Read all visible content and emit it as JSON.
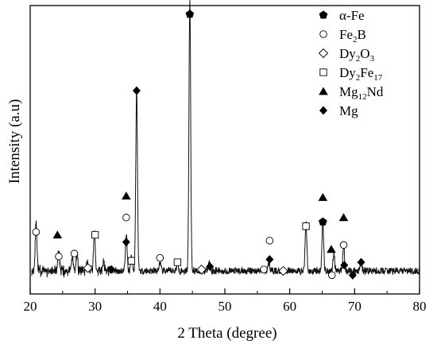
{
  "chart_data": {
    "type": "line",
    "xlabel": "2 Theta  (degree)",
    "ylabel": "Intensity (a.u)",
    "xlim": [
      20,
      80
    ],
    "ylim": [
      0,
      100
    ],
    "x_ticks": [
      "20",
      "30",
      "40",
      "50",
      "60",
      "70",
      "80"
    ],
    "y_ticks_labeled": false,
    "grid": false,
    "legend_position": "top-right",
    "legend": [
      {
        "marker": "pentagon-filled",
        "parts": [
          {
            "t": "α-Fe"
          }
        ]
      },
      {
        "marker": "circle-open",
        "parts": [
          {
            "t": "Fe"
          },
          {
            "t": "2",
            "sub": true
          },
          {
            "t": "B"
          }
        ]
      },
      {
        "marker": "diamond-open",
        "parts": [
          {
            "t": "Dy"
          },
          {
            "t": "2",
            "sub": true
          },
          {
            "t": "O"
          },
          {
            "t": "3",
            "sub": true
          }
        ]
      },
      {
        "marker": "square-open",
        "parts": [
          {
            "t": "Dy"
          },
          {
            "t": "2",
            "sub": true
          },
          {
            "t": "Fe"
          },
          {
            "t": "17",
            "sub": true
          }
        ]
      },
      {
        "marker": "triangle-filled",
        "parts": [
          {
            "t": "Mg"
          },
          {
            "t": "12",
            "sub": true
          },
          {
            "t": "Nd"
          }
        ]
      },
      {
        "marker": "diamond-filled",
        "parts": [
          {
            "t": "Mg"
          }
        ]
      }
    ],
    "baseline": 8,
    "noise_amplitude": 1.2,
    "peaks": [
      {
        "x": 20.9,
        "h": 17
      },
      {
        "x": 24.4,
        "h": 7
      },
      {
        "x": 26.5,
        "h": 5
      },
      {
        "x": 27.2,
        "h": 6
      },
      {
        "x": 28.8,
        "h": 3
      },
      {
        "x": 29.9,
        "h": 14
      },
      {
        "x": 31.3,
        "h": 3
      },
      {
        "x": 34.8,
        "h": 13
      },
      {
        "x": 35.6,
        "h": 5
      },
      {
        "x": 36.4,
        "h": 63
      },
      {
        "x": 40.0,
        "h": 3
      },
      {
        "x": 42.7,
        "h": 3
      },
      {
        "x": 44.6,
        "h": 94
      },
      {
        "x": 47.6,
        "h": 3
      },
      {
        "x": 56.8,
        "h": 3
      },
      {
        "x": 62.5,
        "h": 17
      },
      {
        "x": 65.1,
        "h": 17
      },
      {
        "x": 66.8,
        "h": 6
      },
      {
        "x": 68.3,
        "h": 9
      },
      {
        "x": 71.0,
        "h": 3
      }
    ],
    "markers": [
      {
        "phase": "pentagon-filled",
        "x": 44.6,
        "y": 97
      },
      {
        "phase": "pentagon-filled",
        "x": 65.1,
        "y": 25
      },
      {
        "phase": "circle-open",
        "x": 20.9,
        "y": 21.5
      },
      {
        "phase": "circle-open",
        "x": 24.4,
        "y": 13
      },
      {
        "phase": "circle-open",
        "x": 26.8,
        "y": 14
      },
      {
        "phase": "circle-open",
        "x": 34.8,
        "y": 26.5
      },
      {
        "phase": "circle-open",
        "x": 40.0,
        "y": 12.5
      },
      {
        "phase": "circle-open",
        "x": 56.0,
        "y": 8.5
      },
      {
        "phase": "circle-open",
        "x": 56.9,
        "y": 18.5
      },
      {
        "phase": "circle-open",
        "x": 66.5,
        "y": 6.5
      },
      {
        "phase": "circle-open",
        "x": 68.3,
        "y": 17
      },
      {
        "phase": "diamond-open",
        "x": 28.9,
        "y": 9
      },
      {
        "phase": "diamond-open",
        "x": 46.4,
        "y": 8.5
      },
      {
        "phase": "diamond-open",
        "x": 59.0,
        "y": 8
      },
      {
        "phase": "square-open",
        "x": 30.0,
        "y": 20.5
      },
      {
        "phase": "square-open",
        "x": 35.6,
        "y": 11.5
      },
      {
        "phase": "square-open",
        "x": 42.7,
        "y": 11
      },
      {
        "phase": "square-open",
        "x": 62.5,
        "y": 23.5
      },
      {
        "phase": "triangle-filled",
        "x": 24.2,
        "y": 20.5
      },
      {
        "phase": "triangle-filled",
        "x": 34.8,
        "y": 34
      },
      {
        "phase": "triangle-filled",
        "x": 65.1,
        "y": 33.5
      },
      {
        "phase": "triangle-filled",
        "x": 66.4,
        "y": 15.5
      },
      {
        "phase": "triangle-filled",
        "x": 68.3,
        "y": 26.5
      },
      {
        "phase": "diamond-filled",
        "x": 32.5,
        "y": 8.5
      },
      {
        "phase": "diamond-filled",
        "x": 34.8,
        "y": 18
      },
      {
        "phase": "diamond-filled",
        "x": 36.4,
        "y": 70.5
      },
      {
        "phase": "diamond-filled",
        "x": 47.7,
        "y": 9.5
      },
      {
        "phase": "diamond-filled",
        "x": 56.9,
        "y": 12
      },
      {
        "phase": "diamond-filled",
        "x": 68.4,
        "y": 10
      },
      {
        "phase": "diamond-filled",
        "x": 69.7,
        "y": 6.5
      },
      {
        "phase": "diamond-filled",
        "x": 71.0,
        "y": 11
      }
    ]
  }
}
